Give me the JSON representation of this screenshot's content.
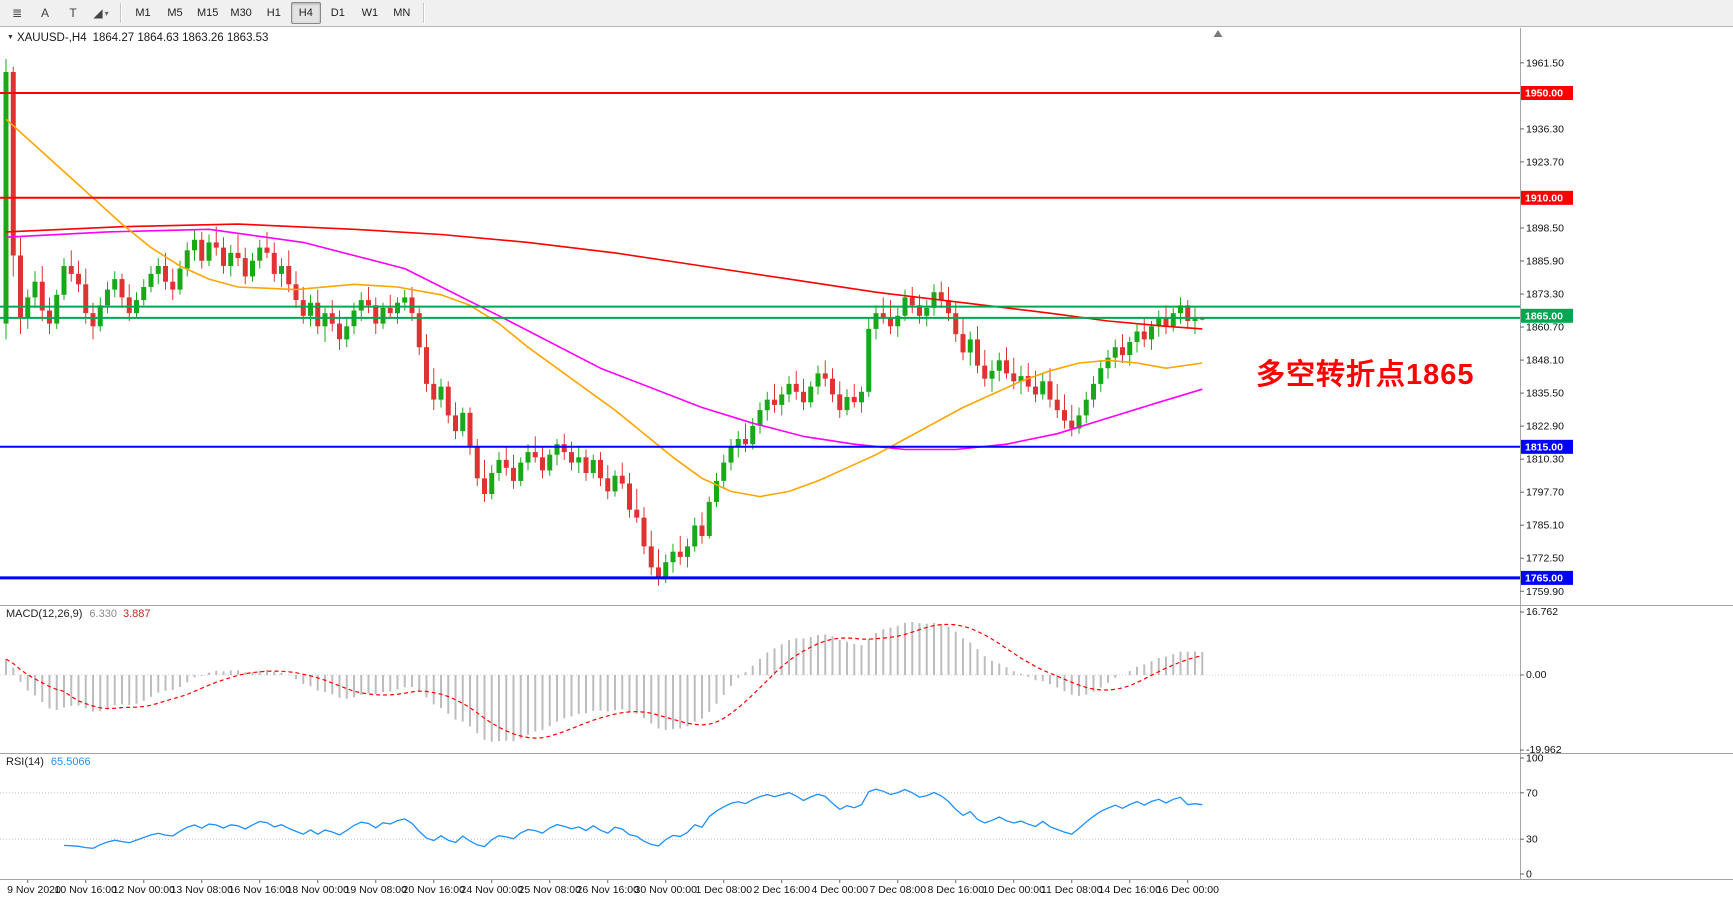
{
  "toolbar": {
    "drawing_tools": [
      {
        "name": "objects-list",
        "glyph": "≣"
      },
      {
        "name": "text-tool",
        "glyph": "A"
      },
      {
        "name": "label-tool",
        "glyph": "T"
      },
      {
        "name": "shapes-tool",
        "glyph": "◢",
        "caret": "▾"
      }
    ],
    "timeframes": [
      "M1",
      "M5",
      "M15",
      "M30",
      "H1",
      "H4",
      "D1",
      "W1",
      "MN"
    ],
    "active_timeframe": "H4"
  },
  "chart": {
    "header": {
      "dropdown_glyph": "▼",
      "symbol": "XAUUSD-,H4",
      "ohlc": "1864.27 1864.63 1863.26 1863.53"
    },
    "annotation_text": "多空转折点1865",
    "colors": {
      "bull": "#18A818",
      "bear": "#E03232",
      "annotation": "#FF0000"
    },
    "price_axis_ticks": [
      1961.5,
      1936.3,
      1923.7,
      1898.5,
      1885.9,
      1873.3,
      1860.7,
      1848.1,
      1835.5,
      1822.9,
      1810.3,
      1797.7,
      1785.1,
      1772.5,
      1759.9
    ],
    "levels": [
      {
        "name": "resistance-line-1950",
        "price": 1950.0,
        "chip": "1950.00",
        "color": "#FF0000",
        "width": 2
      },
      {
        "name": "resistance-line-1910",
        "price": 1910.0,
        "chip": "1910.00",
        "color": "#FF0000",
        "width": 2
      },
      {
        "name": "pivot-zone-upper-line",
        "price": 1868.5,
        "chip": null,
        "color": "#00A650",
        "width": 2
      },
      {
        "name": "pivot-line-1865",
        "price": 1864.2,
        "chip": "1865.00",
        "chip_price": 1865.0,
        "color": "#00A650",
        "width": 2
      },
      {
        "name": "support-line-1815",
        "price": 1815.0,
        "chip": "1815.00",
        "color": "#0000FF",
        "width": 2
      },
      {
        "name": "support-line-1765",
        "price": 1765.0,
        "chip": "1765.00",
        "color": "#0000FF",
        "width": 3
      }
    ],
    "candles": [
      [
        1862,
        1963,
        1856,
        1958
      ],
      [
        1958,
        1960,
        1880,
        1888
      ],
      [
        1888,
        1895,
        1858,
        1864
      ],
      [
        1864,
        1875,
        1860,
        1872
      ],
      [
        1872,
        1882,
        1868,
        1878
      ],
      [
        1878,
        1884,
        1863,
        1867
      ],
      [
        1867,
        1872,
        1858,
        1862
      ],
      [
        1862,
        1875,
        1860,
        1873
      ],
      [
        1873,
        1887,
        1871,
        1884
      ],
      [
        1884,
        1890,
        1878,
        1881
      ],
      [
        1881,
        1886,
        1874,
        1877
      ],
      [
        1877,
        1883,
        1862,
        1866
      ],
      [
        1866,
        1870,
        1856,
        1861
      ],
      [
        1861,
        1872,
        1859,
        1869
      ],
      [
        1869,
        1878,
        1866,
        1875
      ],
      [
        1875,
        1882,
        1872,
        1879
      ],
      [
        1879,
        1881,
        1868,
        1872
      ],
      [
        1872,
        1877,
        1863,
        1866
      ],
      [
        1866,
        1874,
        1864,
        1871
      ],
      [
        1871,
        1879,
        1869,
        1876
      ],
      [
        1876,
        1884,
        1874,
        1881
      ],
      [
        1881,
        1887,
        1877,
        1884
      ],
      [
        1884,
        1889,
        1875,
        1878
      ],
      [
        1878,
        1883,
        1871,
        1875
      ],
      [
        1875,
        1886,
        1873,
        1883
      ],
      [
        1883,
        1893,
        1880,
        1890
      ],
      [
        1890,
        1898,
        1886,
        1894
      ],
      [
        1894,
        1897,
        1883,
        1886
      ],
      [
        1886,
        1896,
        1884,
        1893
      ],
      [
        1893,
        1899,
        1888,
        1891
      ],
      [
        1891,
        1895,
        1881,
        1884
      ],
      [
        1884,
        1892,
        1880,
        1889
      ],
      [
        1889,
        1896,
        1884,
        1887
      ],
      [
        1887,
        1891,
        1877,
        1880
      ],
      [
        1880,
        1889,
        1878,
        1886
      ],
      [
        1886,
        1894,
        1883,
        1891
      ],
      [
        1891,
        1897,
        1887,
        1889
      ],
      [
        1889,
        1893,
        1878,
        1881
      ],
      [
        1881,
        1887,
        1876,
        1884
      ],
      [
        1884,
        1890,
        1874,
        1877
      ],
      [
        1877,
        1882,
        1868,
        1871
      ],
      [
        1871,
        1876,
        1862,
        1865
      ],
      [
        1865,
        1873,
        1861,
        1870
      ],
      [
        1870,
        1875,
        1858,
        1861
      ],
      [
        1861,
        1868,
        1855,
        1866
      ],
      [
        1866,
        1871,
        1859,
        1862
      ],
      [
        1862,
        1867,
        1852,
        1856
      ],
      [
        1856,
        1864,
        1853,
        1861
      ],
      [
        1861,
        1870,
        1858,
        1867
      ],
      [
        1867,
        1874,
        1863,
        1871
      ],
      [
        1871,
        1876,
        1866,
        1869
      ],
      [
        1869,
        1872,
        1858,
        1862
      ],
      [
        1862,
        1870,
        1860,
        1868
      ],
      [
        1868,
        1873,
        1864,
        1866
      ],
      [
        1866,
        1872,
        1862,
        1870
      ],
      [
        1870,
        1875,
        1867,
        1872
      ],
      [
        1872,
        1876,
        1863,
        1866
      ],
      [
        1866,
        1868,
        1850,
        1853
      ],
      [
        1853,
        1858,
        1836,
        1839
      ],
      [
        1839,
        1845,
        1829,
        1833
      ],
      [
        1833,
        1841,
        1830,
        1838
      ],
      [
        1838,
        1840,
        1824,
        1827
      ],
      [
        1827,
        1832,
        1818,
        1821
      ],
      [
        1821,
        1830,
        1819,
        1828
      ],
      [
        1828,
        1830,
        1812,
        1815
      ],
      [
        1815,
        1818,
        1800,
        1803
      ],
      [
        1803,
        1810,
        1794,
        1797
      ],
      [
        1797,
        1808,
        1795,
        1805
      ],
      [
        1805,
        1813,
        1802,
        1810
      ],
      [
        1810,
        1815,
        1804,
        1807
      ],
      [
        1807,
        1812,
        1799,
        1802
      ],
      [
        1802,
        1811,
        1800,
        1809
      ],
      [
        1809,
        1816,
        1806,
        1813
      ],
      [
        1813,
        1819,
        1809,
        1811
      ],
      [
        1811,
        1815,
        1803,
        1806
      ],
      [
        1806,
        1814,
        1804,
        1812
      ],
      [
        1812,
        1818,
        1808,
        1816
      ],
      [
        1816,
        1820,
        1810,
        1813
      ],
      [
        1813,
        1817,
        1806,
        1809
      ],
      [
        1809,
        1815,
        1805,
        1811
      ],
      [
        1811,
        1814,
        1802,
        1805
      ],
      [
        1805,
        1812,
        1803,
        1810
      ],
      [
        1810,
        1813,
        1800,
        1803
      ],
      [
        1803,
        1808,
        1795,
        1798
      ],
      [
        1798,
        1806,
        1796,
        1804
      ],
      [
        1804,
        1809,
        1799,
        1801
      ],
      [
        1801,
        1805,
        1788,
        1791
      ],
      [
        1791,
        1799,
        1786,
        1788
      ],
      [
        1788,
        1792,
        1774,
        1777
      ],
      [
        1777,
        1783,
        1766,
        1769
      ],
      [
        1769,
        1776,
        1762,
        1765
      ],
      [
        1765,
        1774,
        1763,
        1771
      ],
      [
        1771,
        1778,
        1767,
        1775
      ],
      [
        1775,
        1781,
        1770,
        1773
      ],
      [
        1773,
        1780,
        1769,
        1777
      ],
      [
        1777,
        1788,
        1775,
        1785
      ],
      [
        1785,
        1790,
        1778,
        1781
      ],
      [
        1781,
        1796,
        1780,
        1794
      ],
      [
        1794,
        1805,
        1792,
        1802
      ],
      [
        1802,
        1812,
        1799,
        1809
      ],
      [
        1809,
        1818,
        1806,
        1815
      ],
      [
        1815,
        1821,
        1811,
        1818
      ],
      [
        1818,
        1824,
        1813,
        1816
      ],
      [
        1816,
        1826,
        1814,
        1823
      ],
      [
        1823,
        1832,
        1820,
        1829
      ],
      [
        1829,
        1836,
        1825,
        1833
      ],
      [
        1833,
        1839,
        1828,
        1831
      ],
      [
        1831,
        1838,
        1827,
        1835
      ],
      [
        1835,
        1842,
        1832,
        1839
      ],
      [
        1839,
        1844,
        1833,
        1836
      ],
      [
        1836,
        1841,
        1829,
        1832
      ],
      [
        1832,
        1840,
        1830,
        1838
      ],
      [
        1838,
        1846,
        1835,
        1843
      ],
      [
        1843,
        1848,
        1838,
        1841
      ],
      [
        1841,
        1845,
        1832,
        1835
      ],
      [
        1835,
        1840,
        1826,
        1829
      ],
      [
        1829,
        1837,
        1827,
        1834
      ],
      [
        1834,
        1839,
        1830,
        1832
      ],
      [
        1832,
        1838,
        1828,
        1836
      ],
      [
        1836,
        1864,
        1834,
        1860
      ],
      [
        1860,
        1869,
        1856,
        1866
      ],
      [
        1866,
        1872,
        1862,
        1864
      ],
      [
        1864,
        1871,
        1858,
        1861
      ],
      [
        1861,
        1868,
        1857,
        1865
      ],
      [
        1865,
        1875,
        1863,
        1872
      ],
      [
        1872,
        1876,
        1866,
        1869
      ],
      [
        1869,
        1873,
        1862,
        1865
      ],
      [
        1865,
        1871,
        1861,
        1868
      ],
      [
        1868,
        1877,
        1865,
        1874
      ],
      [
        1874,
        1878,
        1868,
        1871
      ],
      [
        1871,
        1876,
        1863,
        1866
      ],
      [
        1866,
        1870,
        1855,
        1858
      ],
      [
        1858,
        1864,
        1848,
        1851
      ],
      [
        1851,
        1859,
        1846,
        1856
      ],
      [
        1856,
        1861,
        1843,
        1846
      ],
      [
        1846,
        1852,
        1838,
        1841
      ],
      [
        1841,
        1848,
        1836,
        1844
      ],
      [
        1844,
        1851,
        1840,
        1848
      ],
      [
        1848,
        1853,
        1841,
        1843
      ],
      [
        1843,
        1849,
        1837,
        1840
      ],
      [
        1840,
        1846,
        1835,
        1842
      ],
      [
        1842,
        1847,
        1836,
        1838
      ],
      [
        1838,
        1844,
        1832,
        1835
      ],
      [
        1835,
        1843,
        1833,
        1840
      ],
      [
        1840,
        1845,
        1830,
        1833
      ],
      [
        1833,
        1839,
        1826,
        1829
      ],
      [
        1829,
        1835,
        1822,
        1825
      ],
      [
        1825,
        1831,
        1819,
        1822
      ],
      [
        1822,
        1830,
        1820,
        1827
      ],
      [
        1827,
        1836,
        1824,
        1833
      ],
      [
        1833,
        1842,
        1830,
        1839
      ],
      [
        1839,
        1848,
        1836,
        1845
      ],
      [
        1845,
        1852,
        1841,
        1849
      ],
      [
        1849,
        1856,
        1845,
        1853
      ],
      [
        1853,
        1858,
        1847,
        1850
      ],
      [
        1850,
        1857,
        1846,
        1855
      ],
      [
        1855,
        1862,
        1851,
        1859
      ],
      [
        1859,
        1864,
        1853,
        1856
      ],
      [
        1856,
        1863,
        1852,
        1861
      ],
      [
        1861,
        1867,
        1857,
        1864
      ],
      [
        1864,
        1869,
        1858,
        1861
      ],
      [
        1861,
        1868,
        1859,
        1866
      ],
      [
        1866,
        1872,
        1862,
        1869
      ],
      [
        1869,
        1871,
        1860,
        1863
      ],
      [
        1863,
        1868,
        1858,
        1864.3
      ],
      [
        1864.27,
        1864.63,
        1863.26,
        1863.53
      ]
    ],
    "moving_averages": [
      {
        "name": "ma-slow-red-line",
        "color": "#FF0000",
        "points": [
          [
            0,
            1897
          ],
          [
            16,
            1899
          ],
          [
            32,
            1900
          ],
          [
            48,
            1898
          ],
          [
            60,
            1896
          ],
          [
            72,
            1893
          ],
          [
            84,
            1889
          ],
          [
            96,
            1884
          ],
          [
            108,
            1879
          ],
          [
            120,
            1874
          ],
          [
            132,
            1870
          ],
          [
            144,
            1866
          ],
          [
            152,
            1863
          ],
          [
            160,
            1861
          ],
          [
            165,
            1860
          ]
        ]
      },
      {
        "name": "ma-mid-magenta-line",
        "color": "#FF00FF",
        "points": [
          [
            0,
            1895
          ],
          [
            14,
            1897
          ],
          [
            28,
            1898
          ],
          [
            41,
            1893
          ],
          [
            55,
            1883
          ],
          [
            68,
            1865
          ],
          [
            82,
            1845
          ],
          [
            96,
            1830
          ],
          [
            103,
            1824
          ],
          [
            110,
            1819
          ],
          [
            117,
            1816
          ],
          [
            124,
            1814
          ],
          [
            131,
            1814
          ],
          [
            138,
            1816
          ],
          [
            145,
            1820
          ],
          [
            152,
            1826
          ],
          [
            159,
            1832
          ],
          [
            165,
            1837
          ]
        ]
      },
      {
        "name": "ma-fast-orange-line",
        "color": "#FFA500",
        "points": [
          [
            0,
            1940
          ],
          [
            4,
            1930
          ],
          [
            8,
            1920
          ],
          [
            12,
            1910
          ],
          [
            16,
            1900
          ],
          [
            20,
            1891
          ],
          [
            24,
            1884
          ],
          [
            28,
            1879
          ],
          [
            32,
            1876
          ],
          [
            40,
            1875
          ],
          [
            48,
            1877
          ],
          [
            54,
            1876
          ],
          [
            60,
            1873
          ],
          [
            64,
            1869
          ],
          [
            68,
            1862
          ],
          [
            72,
            1853
          ],
          [
            76,
            1845
          ],
          [
            80,
            1837
          ],
          [
            84,
            1829
          ],
          [
            88,
            1820
          ],
          [
            92,
            1811
          ],
          [
            96,
            1803
          ],
          [
            100,
            1798
          ],
          [
            104,
            1796
          ],
          [
            108,
            1798
          ],
          [
            112,
            1802
          ],
          [
            116,
            1807
          ],
          [
            120,
            1812
          ],
          [
            124,
            1818
          ],
          [
            128,
            1824
          ],
          [
            132,
            1830
          ],
          [
            136,
            1835
          ],
          [
            140,
            1840
          ],
          [
            144,
            1844
          ],
          [
            148,
            1847
          ],
          [
            152,
            1848
          ],
          [
            156,
            1847
          ],
          [
            160,
            1845
          ],
          [
            165,
            1847
          ]
        ]
      }
    ]
  },
  "macd": {
    "title": "MACD(12,26,9)",
    "main_value": "6.330",
    "signal_value": "3.887",
    "axis": [
      "16.762",
      "0.00",
      "-19.962"
    ],
    "fast": 12,
    "slow": 26,
    "smoothing": 9,
    "histogram_color": "#BDBDBD",
    "signal_color": "#FF0000"
  },
  "rsi": {
    "title": "RSI(14)",
    "value": "65.5066",
    "axis": [
      "100",
      "70",
      "30",
      "0"
    ],
    "period": 14,
    "levels": [
      70,
      30
    ],
    "line_color": "#1E90FF"
  },
  "time_axis": {
    "first_bar": 3,
    "bar_step": 8,
    "labels": [
      "9 Nov 2020",
      "10 Nov 16:00",
      "12 Nov 00:00",
      "13 Nov 08:00",
      "16 Nov 16:00",
      "18 Nov 00:00",
      "19 Nov 08:00",
      "20 Nov 16:00",
      "24 Nov 00:00",
      "25 Nov 08:00",
      "26 Nov 16:00",
      "30 Nov 00:00",
      "1 Dec 08:00",
      "2 Dec 16:00",
      "4 Dec 00:00",
      "7 Dec 08:00",
      "8 Dec 16:00",
      "10 Dec 00:00",
      "11 Dec 08:00",
      "14 Dec 16:00",
      "16 Dec 00:00"
    ]
  }
}
